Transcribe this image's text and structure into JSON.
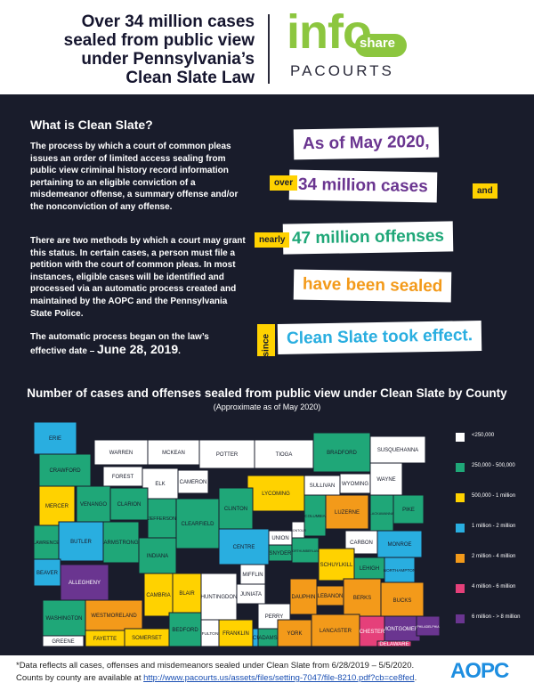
{
  "header": {
    "title_lines": [
      "Over 34 million cases",
      "sealed from public view",
      "under Pennsylvania’s",
      "Clean Slate Law"
    ],
    "logo_info": "info",
    "logo_share": "share",
    "logo_pacourts": "PACOURTS"
  },
  "what": {
    "title": "What is Clean Slate?",
    "para1": "The process by which a court of common pleas issues an order of limited access sealing from public view criminal history record information pertaining to an eligible conviction of a misdemeanor offense, a summary offense and/or the nonconviction of any offense.",
    "para2": "There are two methods by which a court may grant this status. In certain cases, a person must file a petition with the court of common pleas. In most instances, eligible cases will be identified and processed via an automatic process created and maintained by the AOPC and the Pennsylvania State Police.",
    "para3_prefix": "The automatic process began on the law’s effective date – ",
    "para3_date": "June 28, 2019",
    "para3_suffix": "."
  },
  "stats": {
    "asof": "As of May 2020,",
    "over": "over",
    "cases": "34 million cases",
    "and": "and",
    "nearly": "nearly",
    "offenses": "47 million offenses",
    "sealed": "have been sealed",
    "since": "since",
    "effect": "Clean Slate took effect."
  },
  "map": {
    "title": "Number of cases and offenses sealed from public view under Clean Slate by County",
    "subtitle": "(Approximate as of May 2020)"
  },
  "legend": [
    {
      "label": "<250,000",
      "color": "#ffffff"
    },
    {
      "label": "250,000 - 500,000",
      "color": "#1fa778"
    },
    {
      "label": "500,000 - 1 million",
      "color": "#ffd200"
    },
    {
      "label": "1 million - 2 million",
      "color": "#29aee0"
    },
    {
      "label": "2 million - 4 million",
      "color": "#f39a1a"
    },
    {
      "label": "4 million - 6 million",
      "color": "#e5407a"
    },
    {
      "label": "6 million - > 8 million",
      "color": "#6a3590"
    }
  ],
  "counties": [
    {
      "name": "ERIE",
      "color": "#29aee0"
    },
    {
      "name": "WARREN",
      "color": "#ffffff"
    },
    {
      "name": "MCKEAN",
      "color": "#ffffff"
    },
    {
      "name": "POTTER",
      "color": "#ffffff"
    },
    {
      "name": "TIOGA",
      "color": "#ffffff"
    },
    {
      "name": "BRADFORD",
      "color": "#1fa778"
    },
    {
      "name": "SUSQUEHANNA",
      "color": "#ffffff"
    },
    {
      "name": "WAYNE",
      "color": "#ffffff"
    },
    {
      "name": "CRAWFORD",
      "color": "#1fa778"
    },
    {
      "name": "FOREST",
      "color": "#ffffff"
    },
    {
      "name": "ELK",
      "color": "#ffffff"
    },
    {
      "name": "CAMERON",
      "color": "#ffffff"
    },
    {
      "name": "LYCOMING",
      "color": "#ffd200"
    },
    {
      "name": "SULLIVAN",
      "color": "#ffffff"
    },
    {
      "name": "WYOMING",
      "color": "#ffffff"
    },
    {
      "name": "LACKAWANNA",
      "color": "#1fa778"
    },
    {
      "name": "PIKE",
      "color": "#1fa778"
    },
    {
      "name": "MERCER",
      "color": "#ffd200"
    },
    {
      "name": "VENANGO",
      "color": "#1fa778"
    },
    {
      "name": "CLARION",
      "color": "#1fa778"
    },
    {
      "name": "JEFFERSON",
      "color": "#1fa778"
    },
    {
      "name": "CLEARFIELD",
      "color": "#1fa778"
    },
    {
      "name": "CLINTON",
      "color": "#1fa778"
    },
    {
      "name": "COLUMBIA",
      "color": "#1fa778"
    },
    {
      "name": "LUZERNE",
      "color": "#f39a1a"
    },
    {
      "name": "MONROE",
      "color": "#29aee0"
    },
    {
      "name": "LAWRENCE",
      "color": "#1fa778"
    },
    {
      "name": "BUTLER",
      "color": "#29aee0"
    },
    {
      "name": "ARMSTRONG",
      "color": "#1fa778"
    },
    {
      "name": "CENTRE",
      "color": "#29aee0"
    },
    {
      "name": "UNION",
      "color": "#ffffff"
    },
    {
      "name": "MONTOUR",
      "color": "#ffffff"
    },
    {
      "name": "NORTHUMBERLAND",
      "color": "#1fa778"
    },
    {
      "name": "CARBON",
      "color": "#ffffff"
    },
    {
      "name": "BEAVER",
      "color": "#29aee0"
    },
    {
      "name": "INDIANA",
      "color": "#1fa778"
    },
    {
      "name": "SNYDER",
      "color": "#1fa778"
    },
    {
      "name": "MIFFLIN",
      "color": "#ffffff"
    },
    {
      "name": "SCHUYLKILL",
      "color": "#ffd200"
    },
    {
      "name": "LEHIGH",
      "color": "#1fa778"
    },
    {
      "name": "NORTHAMPTON",
      "color": "#29aee0"
    },
    {
      "name": "ALLEGHENY",
      "color": "#6a3590"
    },
    {
      "name": "WESTMORELAND",
      "color": "#f39a1a"
    },
    {
      "name": "CAMBRIA",
      "color": "#ffd200"
    },
    {
      "name": "BLAIR",
      "color": "#ffd200"
    },
    {
      "name": "HUNTINGDON",
      "color": "#ffffff"
    },
    {
      "name": "JUNIATA",
      "color": "#ffffff"
    },
    {
      "name": "PERRY",
      "color": "#ffffff"
    },
    {
      "name": "DAUPHIN",
      "color": "#f39a1a"
    },
    {
      "name": "LEBANON",
      "color": "#f39a1a"
    },
    {
      "name": "BERKS",
      "color": "#f39a1a"
    },
    {
      "name": "BUCKS",
      "color": "#f39a1a"
    },
    {
      "name": "MONTGOMERY",
      "color": "#6a3590"
    },
    {
      "name": "WASHINGTON",
      "color": "#1fa778"
    },
    {
      "name": "CUMBERLAND",
      "color": "#29aee0"
    },
    {
      "name": "GREENE",
      "color": "#ffffff"
    },
    {
      "name": "FAYETTE",
      "color": "#ffd200"
    },
    {
      "name": "SOMERSET",
      "color": "#ffd200"
    },
    {
      "name": "BEDFORD",
      "color": "#1fa778"
    },
    {
      "name": "FULTON",
      "color": "#ffffff"
    },
    {
      "name": "FRANKLIN",
      "color": "#ffd200"
    },
    {
      "name": "ADAMS",
      "color": "#1fa778"
    },
    {
      "name": "YORK",
      "color": "#f39a1a"
    },
    {
      "name": "LANCASTER",
      "color": "#f39a1a"
    },
    {
      "name": "CHESTER",
      "color": "#e5407a"
    },
    {
      "name": "DELAWARE",
      "color": "#e5407a"
    },
    {
      "name": "PHILADELPHIA",
      "color": "#6a3590"
    }
  ],
  "footer": {
    "line1": "*Data reflects all cases, offenses and misdemeanors sealed under Clean Slate from 6/28/2019 – 5/5/2020.",
    "line2_prefix": "Counts by county are available at ",
    "link": "http://www.pacourts.us/assets/files/setting-7047/file-8210.pdf?cb=ce8fed",
    "line2_suffix": ".",
    "aopc": "AOPC"
  }
}
